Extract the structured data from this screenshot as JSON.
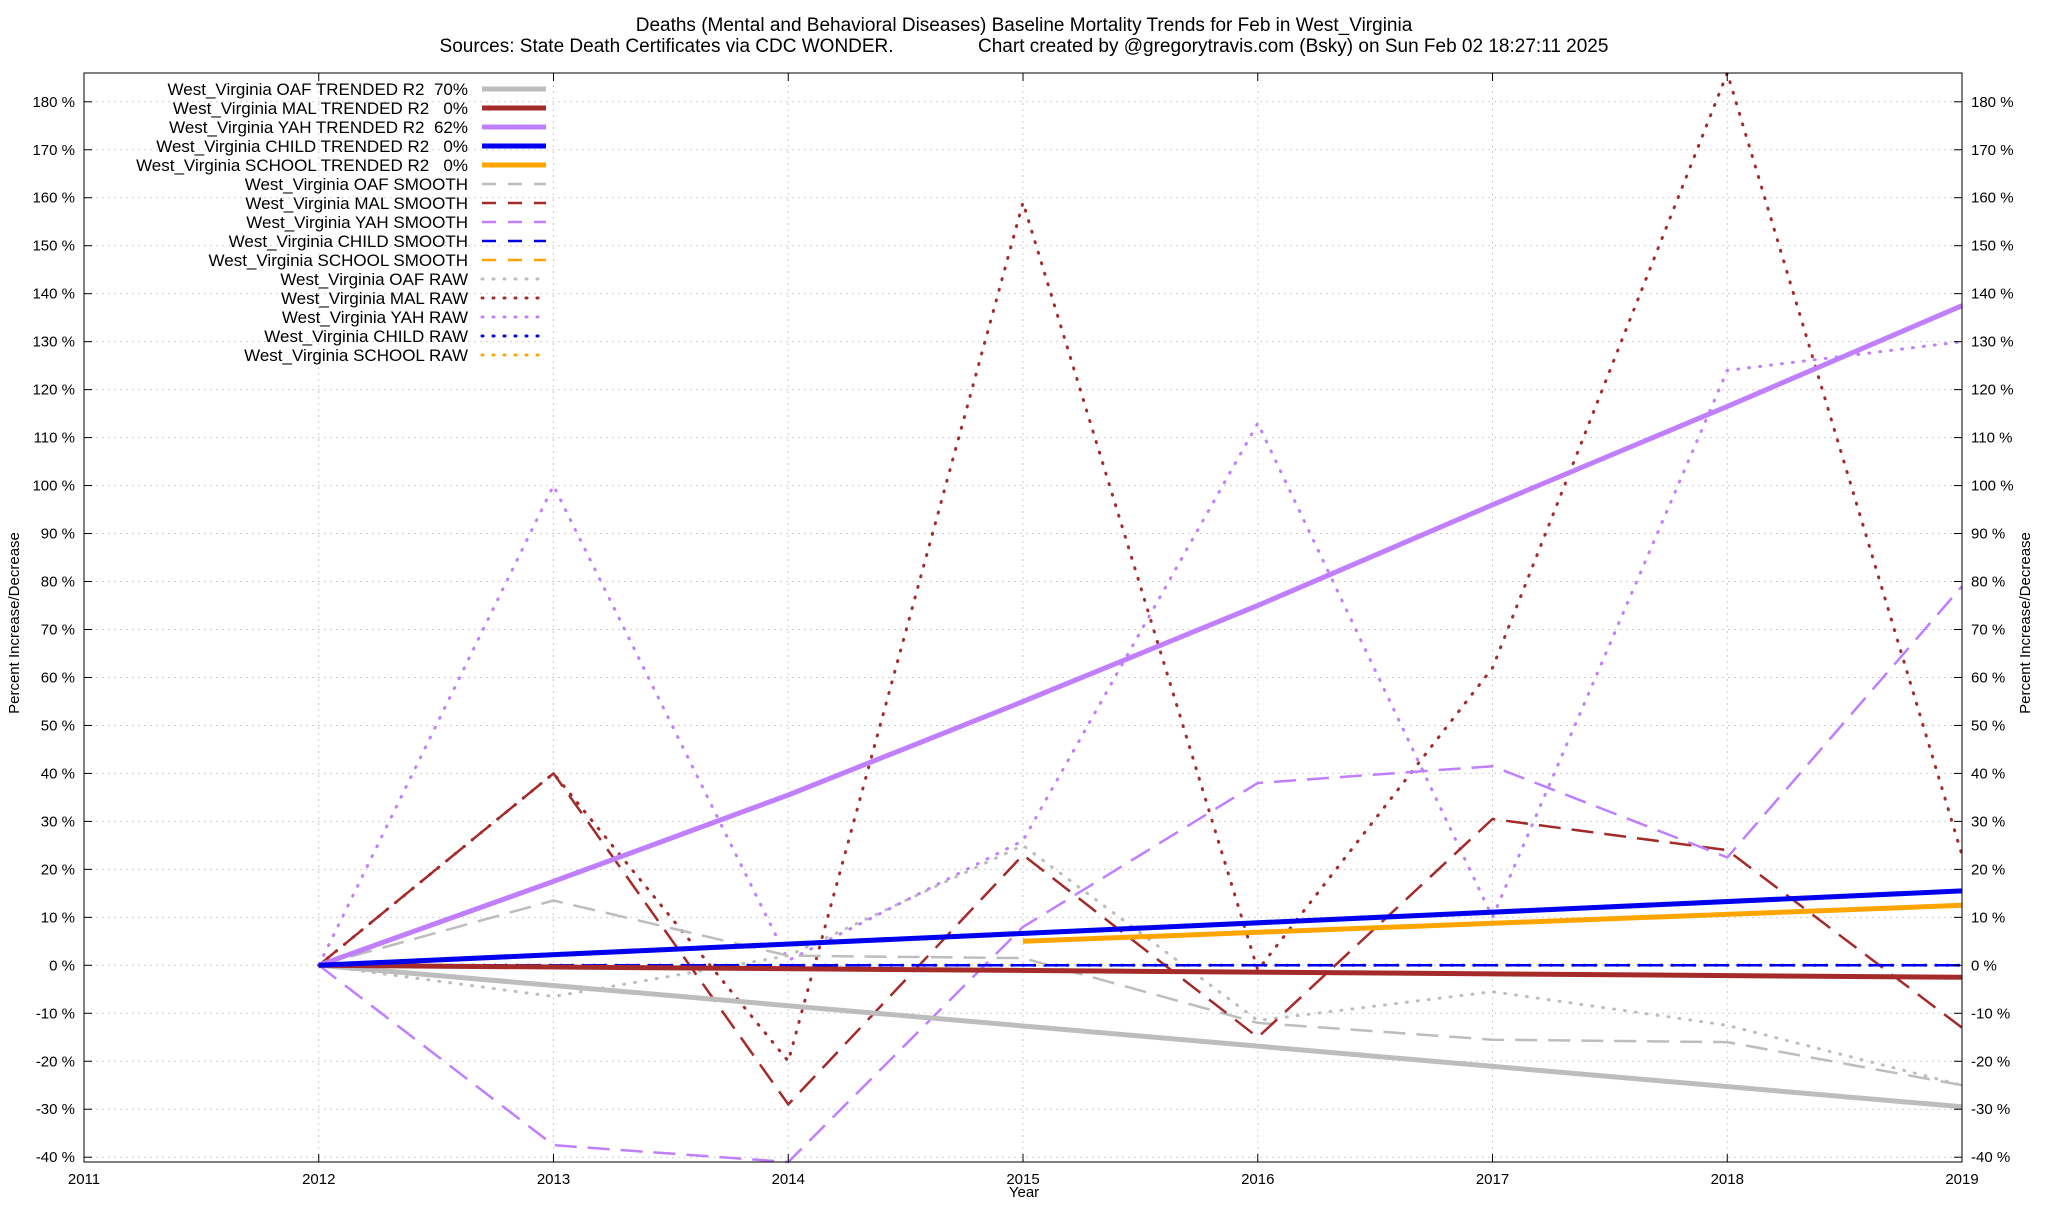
{
  "chart_data": {
    "type": "line",
    "title": "Deaths (Mental and Behavioral Diseases)  Baseline Mortality Trends for Feb in West_Virginia",
    "subtitle": "Sources: State Death Certificates via CDC WONDER.                Chart created by @gregorytravis.com (Bsky) on Sun Feb 02 18:27:11 2025",
    "xlabel": "Year",
    "ylabel_left": "Percent Increase/Decrease",
    "ylabel_right": "Percent Increase/Decrease",
    "xlim": [
      2011,
      2019
    ],
    "ylim": [
      -41,
      186
    ],
    "x_ticks": [
      2011,
      2012,
      2013,
      2014,
      2015,
      2016,
      2017,
      2018,
      2019
    ],
    "x_tick_labels": [
      "2011",
      "2012",
      "2013",
      "2014",
      "2015",
      "2016",
      "2017",
      "2018",
      "2019"
    ],
    "y_ticks": [
      -40,
      -30,
      -20,
      -10,
      0,
      10,
      20,
      30,
      40,
      50,
      60,
      70,
      80,
      90,
      100,
      110,
      120,
      130,
      140,
      150,
      160,
      170,
      180
    ],
    "y_tick_labels": [
      "-40 %",
      "-30 %",
      "-20 %",
      "-10 %",
      "0 %",
      "10 %",
      "20 %",
      "30 %",
      "40 %",
      "50 %",
      "60 %",
      "70 %",
      "80 %",
      "90 %",
      "100 %",
      "110 %",
      "120 %",
      "130 %",
      "140 %",
      "150 %",
      "160 %",
      "170 %",
      "180 %"
    ],
    "grid": true,
    "legend_position": "top-left",
    "series": [
      {
        "name": "West_Virginia OAF TRENDED R2  70%",
        "style": "solid",
        "color": "#bdbdbd",
        "x": [
          2012,
          2019
        ],
        "values": [
          0,
          -29.5
        ]
      },
      {
        "name": "West_Virginia MAL TRENDED R2   0%",
        "style": "solid",
        "color": "#a52a2a",
        "x": [
          2012,
          2019
        ],
        "values": [
          0,
          -2.5
        ]
      },
      {
        "name": "West_Virginia YAH TRENDED R2  62%",
        "style": "solid",
        "color": "#bf7fff",
        "x": [
          2012,
          2013,
          2014,
          2015,
          2016,
          2017,
          2018,
          2019
        ],
        "values": [
          0,
          17.5,
          35.5,
          55,
          75,
          96,
          116.5,
          137.5
        ]
      },
      {
        "name": "West_Virginia CHILD TRENDED R2   0%",
        "style": "solid",
        "color": "#0000ee",
        "x": [
          2012,
          2019
        ],
        "values": [
          0,
          15.5
        ]
      },
      {
        "name": "West_Virginia SCHOOL TRENDED R2   0%",
        "style": "solid",
        "color": "#ffa500",
        "x": [
          2015,
          2019
        ],
        "values": [
          5,
          12.5
        ]
      },
      {
        "name": "West_Virginia OAF SMOOTH",
        "style": "dashed",
        "color": "#bdbdbd",
        "x": [
          2012,
          2013,
          2014,
          2015,
          2016,
          2017,
          2018,
          2019
        ],
        "values": [
          0,
          13.5,
          2,
          1.5,
          -12,
          -15.5,
          -16,
          -25
        ]
      },
      {
        "name": "West_Virginia MAL SMOOTH",
        "style": "dashed",
        "color": "#a52a2a",
        "x": [
          2012,
          2013,
          2014,
          2015,
          2016,
          2017,
          2018,
          2019
        ],
        "values": [
          0,
          40,
          -29,
          23,
          -15,
          30.5,
          24,
          -13
        ]
      },
      {
        "name": "West_Virginia YAH SMOOTH",
        "style": "dashed",
        "color": "#bf7fff",
        "x": [
          2012,
          2013,
          2014,
          2015,
          2016,
          2017,
          2018,
          2019
        ],
        "values": [
          0,
          -37.5,
          -41,
          8,
          38,
          41.5,
          22.5,
          79
        ]
      },
      {
        "name": "West_Virginia CHILD SMOOTH",
        "style": "dashed",
        "color": "#0000ee",
        "x": [
          2012,
          2013,
          2014,
          2015,
          2016,
          2017,
          2018,
          2019
        ],
        "values": [
          0,
          0,
          0,
          0,
          0,
          0,
          0,
          0
        ]
      },
      {
        "name": "West_Virginia SCHOOL SMOOTH",
        "style": "dashed",
        "color": "#ffa500",
        "x": [],
        "values": []
      },
      {
        "name": "West_Virginia OAF RAW",
        "style": "dotted",
        "color": "#bdbdbd",
        "x": [
          2012,
          2013,
          2014,
          2015,
          2016,
          2017,
          2018,
          2019
        ],
        "values": [
          0,
          -6.5,
          2,
          25,
          -11.5,
          -5.5,
          -12.5,
          -25
        ]
      },
      {
        "name": "West_Virginia MAL RAW",
        "style": "dotted",
        "color": "#a52a2a",
        "x": [
          2012,
          2013,
          2014,
          2015,
          2016,
          2017,
          2018,
          2019
        ],
        "values": [
          0,
          40,
          -20,
          159,
          -1,
          62,
          186,
          23
        ]
      },
      {
        "name": "West_Virginia YAH RAW",
        "style": "dotted",
        "color": "#bf7fff",
        "x": [
          2012,
          2013,
          2014,
          2015,
          2016,
          2017,
          2018,
          2019
        ],
        "values": [
          0,
          100,
          1,
          26,
          113,
          10,
          124,
          130
        ]
      },
      {
        "name": "West_Virginia CHILD RAW",
        "style": "dotted",
        "color": "#0000ee",
        "x": [
          2012,
          2013,
          2014,
          2015,
          2016,
          2017,
          2018,
          2019
        ],
        "values": [
          0,
          0,
          0,
          0,
          0,
          0,
          0,
          0
        ]
      },
      {
        "name": "West_Virginia SCHOOL RAW",
        "style": "dotted",
        "color": "#ffa500",
        "x": [],
        "values": []
      }
    ]
  }
}
